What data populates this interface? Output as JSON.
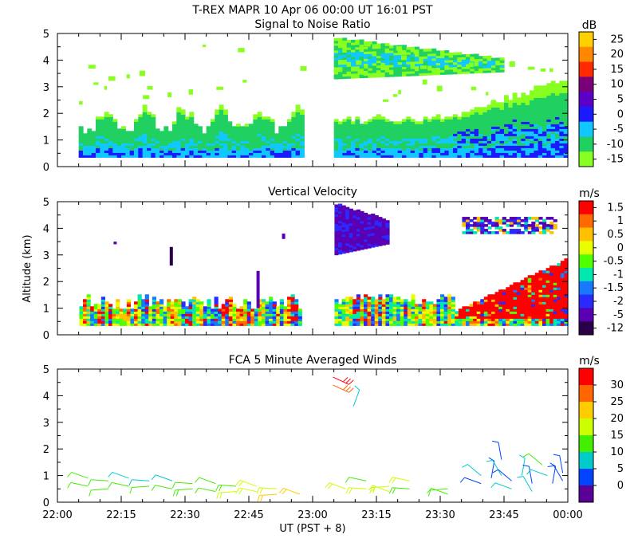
{
  "figure": {
    "title": "T-REX  MAPR 10 Apr 06  00:00 UT  16:01  PST",
    "xlabel": "UT  (PST + 8)",
    "ylabel": "Altitude (km)"
  },
  "chart_data": [
    {
      "type": "heatmap",
      "title": "Signal to Noise Ratio",
      "colorbar_unit": "dB",
      "colorbar_ticks": [
        "25",
        "20",
        "15",
        "10",
        "5",
        "0",
        "-5",
        "-10",
        "-15"
      ],
      "colorbar_colors": [
        "#ffd000",
        "#ff8800",
        "#ff2a00",
        "#7a0078",
        "#5a00c8",
        "#1a1aff",
        "#10c8ff",
        "#20d060",
        "#88ff20"
      ],
      "ylim": [
        0,
        5
      ],
      "yticks": [
        "0",
        "1",
        "2",
        "3",
        "4",
        "5"
      ],
      "xlim_hours": [
        22.0,
        24.0
      ],
      "gap_hours": [
        22.96,
        23.09
      ],
      "data_start_hour": 22.08
    },
    {
      "type": "heatmap",
      "title": "Vertical Velocity",
      "colorbar_unit": "m/s",
      "colorbar_ticks": [
        "1.5",
        "1",
        "0.5",
        "0",
        "-0.5",
        "-1",
        "-1.5",
        "-2",
        "-5",
        "-12"
      ],
      "colorbar_colors": [
        "#ff0000",
        "#ff6a00",
        "#ffc000",
        "#e8ff00",
        "#50ff00",
        "#00e8b0",
        "#1878ff",
        "#2a2aff",
        "#5a00b4",
        "#2a0048"
      ],
      "ylim": [
        0,
        5
      ],
      "yticks": [
        "0",
        "1",
        "2",
        "3",
        "4",
        "5"
      ],
      "xlim_hours": [
        22.0,
        24.0
      ],
      "gap_hours": [
        22.96,
        23.09
      ]
    },
    {
      "type": "scatter",
      "title": "FCA 5 Minute Averaged Winds",
      "colorbar_unit": "m/s",
      "colorbar_ticks": [
        "30",
        "25",
        "20",
        "15",
        "10",
        "5",
        "0"
      ],
      "colorbar_colors": [
        "#ff0000",
        "#ff6600",
        "#ffcc00",
        "#ccff00",
        "#44ee00",
        "#00cccc",
        "#0044ff",
        "#5a0096"
      ],
      "ylim": [
        0,
        5
      ],
      "yticks": [
        "0",
        "1",
        "2",
        "3",
        "4",
        "5"
      ],
      "xticks": [
        "22:00",
        "22:15",
        "22:30",
        "22:45",
        "23:00",
        "23:15",
        "23:30",
        "23:45",
        "00:00"
      ],
      "xlim_hours": [
        22.0,
        24.0
      ],
      "barbs": [
        {
          "t": 22.12,
          "alt": 0.9,
          "speed": 14
        },
        {
          "t": 22.12,
          "alt": 0.6,
          "speed": 13
        },
        {
          "t": 22.2,
          "alt": 0.8,
          "speed": 12
        },
        {
          "t": 22.2,
          "alt": 0.5,
          "speed": 11
        },
        {
          "t": 22.28,
          "alt": 0.9,
          "speed": 10
        },
        {
          "t": 22.28,
          "alt": 0.6,
          "speed": 12
        },
        {
          "t": 22.36,
          "alt": 0.8,
          "speed": 9
        },
        {
          "t": 22.36,
          "alt": 0.6,
          "speed": 11
        },
        {
          "t": 22.45,
          "alt": 0.8,
          "speed": 10
        },
        {
          "t": 22.45,
          "alt": 0.5,
          "speed": 13
        },
        {
          "t": 22.53,
          "alt": 0.7,
          "speed": 14
        },
        {
          "t": 22.53,
          "alt": 0.5,
          "speed": 15
        },
        {
          "t": 22.62,
          "alt": 0.7,
          "speed": 13
        },
        {
          "t": 22.62,
          "alt": 0.4,
          "speed": 14
        },
        {
          "t": 22.7,
          "alt": 0.6,
          "speed": 15
        },
        {
          "t": 22.7,
          "alt": 0.4,
          "speed": 16
        },
        {
          "t": 22.78,
          "alt": 0.6,
          "speed": 17
        },
        {
          "t": 22.78,
          "alt": 0.4,
          "speed": 18
        },
        {
          "t": 22.86,
          "alt": 0.5,
          "speed": 19
        },
        {
          "t": 22.86,
          "alt": 0.3,
          "speed": 20
        },
        {
          "t": 22.95,
          "alt": 0.3,
          "speed": 21
        },
        {
          "t": 23.08,
          "alt": 4.7,
          "speed": 30
        },
        {
          "t": 23.08,
          "alt": 4.4,
          "speed": 26
        },
        {
          "t": 23.16,
          "alt": 3.6,
          "speed": 8
        },
        {
          "t": 23.13,
          "alt": 0.5,
          "speed": 19
        },
        {
          "t": 23.21,
          "alt": 0.8,
          "speed": 14
        },
        {
          "t": 23.21,
          "alt": 0.5,
          "speed": 16
        },
        {
          "t": 23.3,
          "alt": 0.6,
          "speed": 17
        },
        {
          "t": 23.3,
          "alt": 0.4,
          "speed": 16
        },
        {
          "t": 23.38,
          "alt": 0.8,
          "speed": 18
        },
        {
          "t": 23.38,
          "alt": 0.5,
          "speed": 15
        },
        {
          "t": 23.53,
          "alt": 0.5,
          "speed": 13
        },
        {
          "t": 23.53,
          "alt": 0.3,
          "speed": 12
        },
        {
          "t": 23.66,
          "alt": 1.0,
          "speed": 7
        },
        {
          "t": 23.66,
          "alt": 0.7,
          "speed": 4
        },
        {
          "t": 23.7,
          "alt": 0.9,
          "speed": 5
        },
        {
          "t": 23.74,
          "alt": 1.6,
          "speed": 5
        },
        {
          "t": 23.74,
          "alt": 1.0,
          "speed": 8
        },
        {
          "t": 23.78,
          "alt": 0.8,
          "speed": 6
        },
        {
          "t": 23.78,
          "alt": 0.5,
          "speed": 9
        },
        {
          "t": 23.82,
          "alt": 1.0,
          "speed": 9
        },
        {
          "t": 23.86,
          "alt": 0.7,
          "speed": 6
        },
        {
          "t": 23.86,
          "alt": 0.4,
          "speed": 8
        },
        {
          "t": 23.9,
          "alt": 1.4,
          "speed": 12
        },
        {
          "t": 23.92,
          "alt": 1.0,
          "speed": 10
        },
        {
          "t": 23.94,
          "alt": 0.7,
          "speed": 4
        },
        {
          "t": 23.98,
          "alt": 1.1,
          "speed": 3
        },
        {
          "t": 23.98,
          "alt": 0.8,
          "speed": 5
        }
      ]
    }
  ]
}
